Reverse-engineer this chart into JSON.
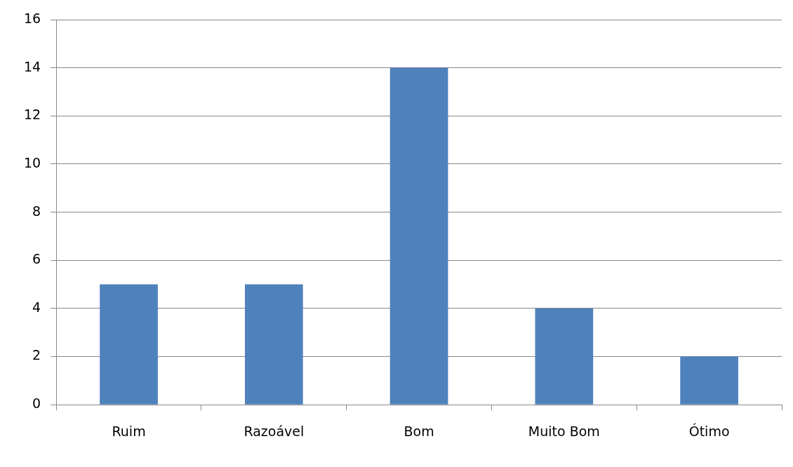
{
  "chart_data": {
    "type": "bar",
    "categories": [
      "Ruim",
      "Razoável",
      "Bom",
      "Muito Bom",
      "Ótimo"
    ],
    "values": [
      5,
      5,
      14,
      4,
      2
    ],
    "color": "#4f81bd",
    "ylim": [
      0,
      16
    ],
    "yticks": [
      0,
      2,
      4,
      6,
      8,
      10,
      12,
      14,
      16
    ],
    "grid": "y",
    "legend": false
  }
}
